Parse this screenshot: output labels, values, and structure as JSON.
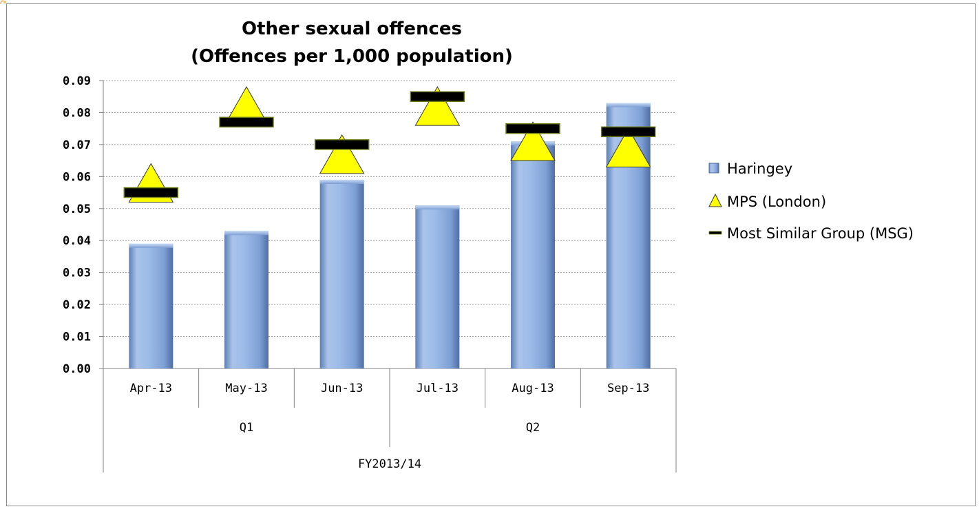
{
  "chart_data": {
    "type": "bar",
    "title": [
      "Other sexual offences",
      "(Offences per 1,000 population)"
    ],
    "xlabel": "",
    "ylabel": "",
    "ylim": [
      0,
      0.09
    ],
    "yticks": [
      "0.00",
      "0.01",
      "0.02",
      "0.03",
      "0.04",
      "0.05",
      "0.06",
      "0.07",
      "0.08",
      "0.09"
    ],
    "categories": [
      "Apr-13",
      "May-13",
      "Jun-13",
      "Jul-13",
      "Aug-13",
      "Sep-13"
    ],
    "groups": [
      {
        "label": "Q1",
        "span": [
          0,
          2
        ]
      },
      {
        "label": "Q2",
        "span": [
          3,
          5
        ]
      }
    ],
    "super_group": {
      "label": "FY2013/14",
      "span": [
        0,
        5
      ]
    },
    "grid": true,
    "legend_position": "right",
    "series": [
      {
        "name": "Haringey",
        "kind": "bar",
        "color": "#8fb0e0",
        "values": [
          0.039,
          0.043,
          0.059,
          0.051,
          0.071,
          0.083
        ]
      },
      {
        "name": "MPS (London)",
        "kind": "triangle-marker",
        "color": "#ffff00",
        "values": [
          0.058,
          0.082,
          0.067,
          0.082,
          0.071,
          0.069
        ]
      },
      {
        "name": "Most Similar Group (MSG)",
        "kind": "dash-marker",
        "color": "#000000",
        "values": [
          0.055,
          0.077,
          0.07,
          0.085,
          0.075,
          0.074
        ]
      }
    ]
  }
}
